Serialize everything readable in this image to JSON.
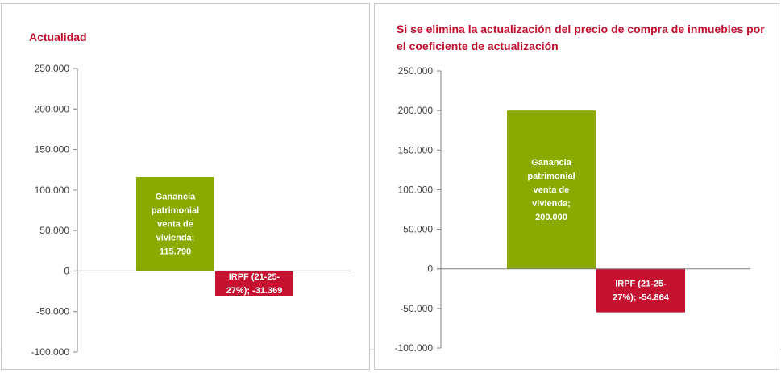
{
  "chart_data": [
    {
      "type": "bar",
      "title": "Actualidad",
      "xlabel": "",
      "ylabel": "",
      "ylim": [
        -100000,
        250000
      ],
      "yticks": [
        250000,
        200000,
        150000,
        100000,
        50000,
        0,
        -50000,
        -100000
      ],
      "ytick_labels": [
        "250.000",
        "200.000",
        "150.000",
        "100.000",
        "50.000",
        "0",
        "-50.000",
        "-100.000"
      ],
      "categories": [
        "Ganancia patrimonial venta de vivienda",
        "IRPF (21-25-27%)"
      ],
      "values": [
        115790,
        -31369
      ],
      "data_labels": [
        [
          "Ganancia",
          "patrimonial",
          "venta de",
          "vivienda;",
          "115.790"
        ],
        [
          "IRPF (21-25-",
          "27%); -31.369"
        ]
      ],
      "colors": [
        "#8aaa00",
        "#c41230"
      ],
      "grid": false,
      "legend": "none"
    },
    {
      "type": "bar",
      "title": "Si se elimina la actualización del precio de compra de inmuebles por el coeficiente de actualización",
      "xlabel": "",
      "ylabel": "",
      "ylim": [
        -100000,
        250000
      ],
      "yticks": [
        250000,
        200000,
        150000,
        100000,
        50000,
        0,
        -50000,
        -100000
      ],
      "ytick_labels": [
        "250.000",
        "200.000",
        "150.000",
        "100.000",
        "50.000",
        "0",
        "-50.000",
        "-100.000"
      ],
      "categories": [
        "Ganancia patrimonial venta de vivienda",
        "IRPF (21-25-27%)"
      ],
      "values": [
        200000,
        -54864
      ],
      "data_labels": [
        [
          "Ganancia",
          "patrimonial",
          "venta de",
          "vivienda;",
          "200.000"
        ],
        [
          "IRPF (21-25-",
          "27%); -54.864"
        ]
      ],
      "colors": [
        "#8aaa00",
        "#c41230"
      ],
      "grid": false,
      "legend": "none"
    }
  ]
}
